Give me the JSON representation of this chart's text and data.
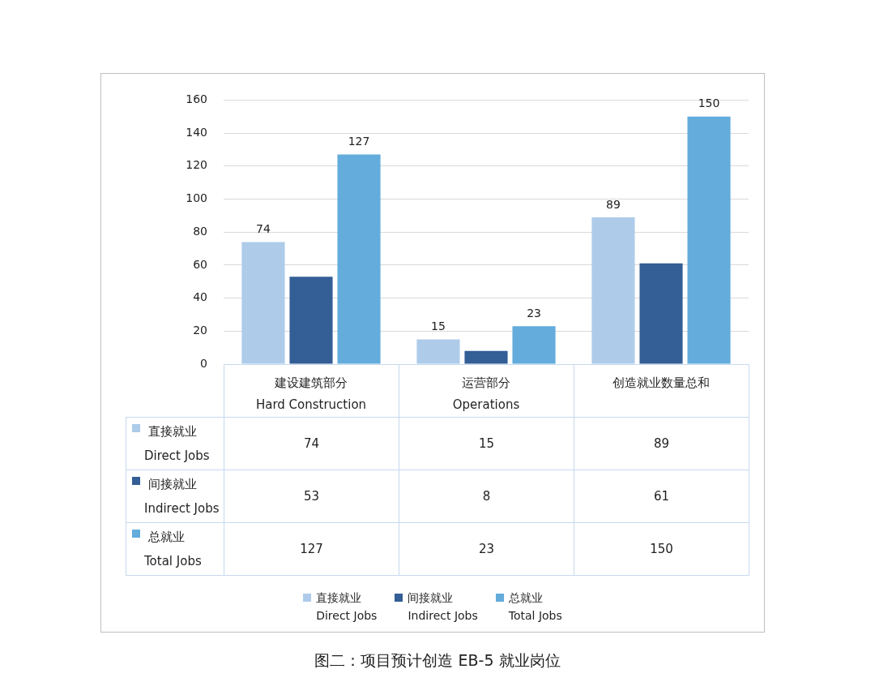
{
  "chart_data": [
    {
      "type": "bar",
      "title": "图二：项目预计创造 EB-5 就业岗位",
      "categories": [
        "建设建筑部分\nHard Construction",
        "运营部分\nOperations",
        "创造就业数量总和"
      ],
      "series": [
        {
          "name": "直接就业\nDirect Jobs",
          "color": "#aecbea",
          "values": [
            74,
            15,
            89
          ],
          "value_labels": [
            "74",
            "15",
            "89"
          ]
        },
        {
          "name": "间接就业\nIndirect Jobs",
          "color": "#335e96",
          "values": [
            53,
            8,
            61
          ]
        },
        {
          "name": "总就业\nTotal Jobs",
          "color": "#63acdc",
          "values": [
            127,
            23,
            150
          ],
          "value_labels": [
            "127",
            "23",
            "150"
          ]
        }
      ],
      "ylim": [
        0,
        160
      ],
      "yticks": [
        0,
        20,
        40,
        60,
        80,
        100,
        120,
        140,
        160
      ],
      "grid": "y",
      "legend": "bottom"
    },
    {
      "type": "other",
      "annotations": [
        "74",
        "15",
        "89",
        "53",
        "8",
        "61",
        "127",
        "23",
        "150"
      ]
    }
  ]
}
